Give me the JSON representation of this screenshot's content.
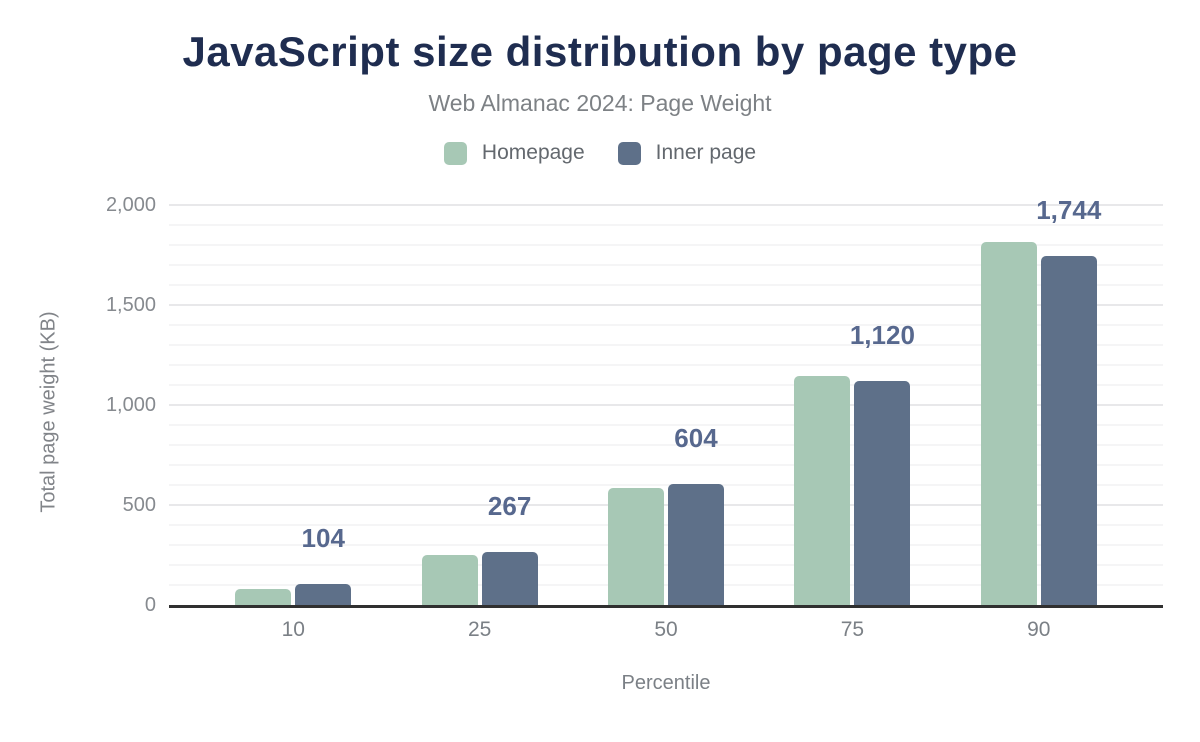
{
  "header": {
    "title": "JavaScript size distribution by page type",
    "subtitle": "Web Almanac 2024: Page Weight"
  },
  "legend": {
    "items": [
      {
        "label": "Homepage",
        "color": "#a7c8b5"
      },
      {
        "label": "Inner page",
        "color": "#5e7089"
      }
    ]
  },
  "chart_data": {
    "type": "bar",
    "title": "JavaScript size distribution by page type",
    "subtitle": "Web Almanac 2024: Page Weight",
    "categories": [
      "10",
      "25",
      "50",
      "75",
      "90"
    ],
    "series": [
      {
        "name": "Homepage",
        "color": "#a7c8b5",
        "values": [
          80,
          250,
          585,
          1145,
          1815
        ]
      },
      {
        "name": "Inner page",
        "color": "#5e7089",
        "values": [
          104,
          267,
          604,
          1120,
          1744
        ],
        "data_labels": [
          "104",
          "267",
          "604",
          "1,120",
          "1,744"
        ]
      }
    ],
    "xlabel": "Percentile",
    "ylabel": "Total page weight (KB)",
    "ylim": [
      0,
      2000
    ],
    "yticks": [
      {
        "value": 0,
        "label": "0"
      },
      {
        "value": 500,
        "label": "500"
      },
      {
        "value": 1000,
        "label": "1,000"
      },
      {
        "value": 1500,
        "label": "1,500"
      },
      {
        "value": 2000,
        "label": "2,000"
      }
    ],
    "minor_grid_step": 100,
    "grid": true,
    "legend_position": "top",
    "data_label_color": "#57688e",
    "title_color": "#1f2d50"
  }
}
